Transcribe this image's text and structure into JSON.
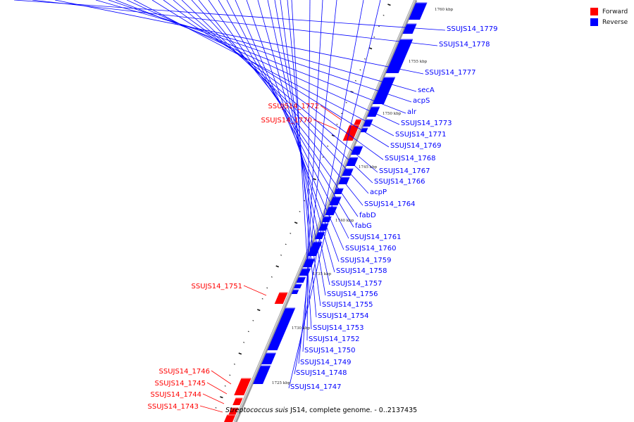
{
  "legend": {
    "forward": {
      "label": "Forward",
      "color": "#ff0000"
    },
    "reverse": {
      "label": "Reverse",
      "color": "#0000ff"
    }
  },
  "caption": {
    "organism": "Streptococcus suis",
    "rest": " JS14, complete genome. - 0..2137435"
  },
  "scale_labels": [
    "1760 kbp",
    "1755 kbp",
    "1750 kbp",
    "1745 kbp",
    "1740 kbp",
    "1735 kbp",
    "1730 kbp",
    "1725 kbp"
  ],
  "forward_genes": [
    "SSUJS14_1772",
    "SSUJS14_1770",
    "SSUJS14_1751",
    "SSUJS14_1746",
    "SSUJS14_1745",
    "SSUJS14_1744",
    "SSUJS14_1743"
  ],
  "reverse_genes": [
    "SSUJS14_1779",
    "SSUJS14_1778",
    "SSUJS14_1777",
    "secA",
    "acpS",
    "alr",
    "SSUJS14_1773",
    "SSUJS14_1771",
    "SSUJS14_1769",
    "SSUJS14_1768",
    "SSUJS14_1767",
    "SSUJS14_1766",
    "acpP",
    "SSUJS14_1764",
    "fabD",
    "fabG",
    "SSUJS14_1761",
    "SSUJS14_1760",
    "SSUJS14_1759",
    "SSUJS14_1758",
    "SSUJS14_1757",
    "SSUJS14_1756",
    "SSUJS14_1755",
    "SSUJS14_1754",
    "SSUJS14_1753",
    "SSUJS14_1752",
    "SSUJS14_1750",
    "SSUJS14_1749",
    "SSUJS14_1748",
    "SSUJS14_1747"
  ]
}
